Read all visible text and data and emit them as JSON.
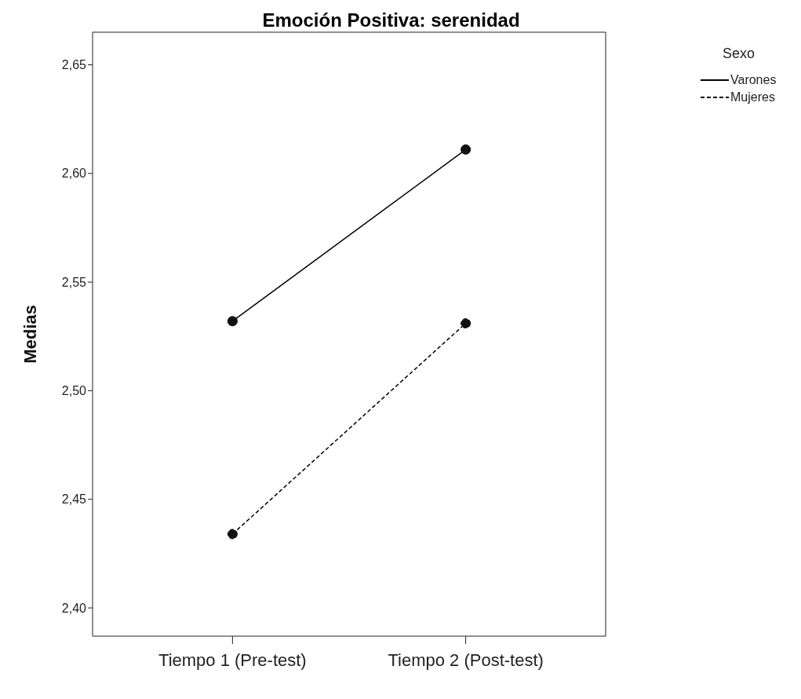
{
  "chart_data": {
    "type": "line",
    "title": "Emoción Positiva: serenidad",
    "ylabel": "Medias",
    "legend_title": "Sexo",
    "categories": [
      "Tiempo 1 (Pre-test)",
      "Tiempo 2 (Post-test)"
    ],
    "series": [
      {
        "name": "Varones",
        "color": "#000000",
        "values": [
          2.532,
          2.611
        ],
        "line_style": "solid"
      },
      {
        "name": "Mujeres",
        "color": "#000000",
        "values": [
          2.434,
          2.531
        ],
        "line_style": "dashed"
      }
    ],
    "ylim": [
      2.387,
      2.665
    ],
    "yticks": [
      {
        "value": 2.4,
        "label": "2,40"
      },
      {
        "value": 2.45,
        "label": "2,45"
      },
      {
        "value": 2.5,
        "label": "2,50"
      },
      {
        "value": 2.55,
        "label": "2,55"
      },
      {
        "value": 2.6,
        "label": "2,60"
      },
      {
        "value": 2.65,
        "label": "2,65"
      }
    ],
    "grid": false,
    "legend": "top right",
    "marker": "circle"
  }
}
